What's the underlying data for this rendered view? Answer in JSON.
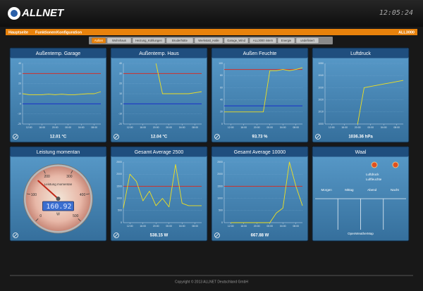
{
  "header": {
    "logo": "ALLNET",
    "clock": "12:05:24"
  },
  "menu": {
    "items": [
      "Hauptseite",
      "Funktionen",
      "Konfiguration"
    ],
    "right": "ALL3000"
  },
  "tabs": {
    "items": [
      "Außen",
      "Wohnhaus",
      "Heizung_Kühlungen",
      "Bruderhütte",
      "Werkstatt_Halle",
      "Garage_Wind",
      "ALL3000 intern",
      "Energie",
      "undefiniert"
    ],
    "active": 0
  },
  "panels": [
    {
      "type": "line",
      "title": "Außentemp. Garage",
      "value": "12.01 °C",
      "chart": {
        "x": [
          0,
          2,
          4,
          6,
          8,
          10,
          12,
          14,
          16,
          18,
          20,
          22,
          24
        ],
        "xlim": [
          0,
          24
        ],
        "xticks": [
          {
            "value": 2,
            "label": "12:00"
          },
          {
            "value": 6,
            "label": "16:00"
          },
          {
            "value": 10,
            "label": "20:00"
          },
          {
            "value": 14,
            "label": "00:00"
          },
          {
            "value": 18,
            "label": "04:00"
          },
          {
            "value": 22,
            "label": "08:00"
          }
        ],
        "ylim": [
          -20,
          40
        ],
        "yticks": [
          -20,
          -10,
          0,
          10,
          20,
          30,
          40
        ],
        "limits": [
          {
            "value": 30,
            "color": "#d0302a"
          },
          {
            "value": 0,
            "color": "#1830c8"
          }
        ],
        "series": [
          {
            "color": "#f0e020",
            "values": [
              10,
              9,
              9,
              9,
              9.5,
              9,
              9.5,
              9,
              9,
              9.5,
              10,
              10,
              12
            ]
          }
        ]
      }
    },
    {
      "type": "line",
      "title": "Außentemp. Haus",
      "value": "12.04 °C",
      "chart": {
        "x": [
          0,
          2,
          4,
          6,
          8,
          10,
          12,
          14,
          16,
          18,
          20,
          22,
          24
        ],
        "xlim": [
          0,
          24
        ],
        "xticks": [
          {
            "value": 2,
            "label": "12:00"
          },
          {
            "value": 6,
            "label": "16:00"
          },
          {
            "value": 10,
            "label": "20:00"
          },
          {
            "value": 14,
            "label": "00:00"
          },
          {
            "value": 18,
            "label": "04:00"
          },
          {
            "value": 22,
            "label": "08:00"
          }
        ],
        "ylim": [
          -20,
          40
        ],
        "yticks": [
          -20,
          -10,
          0,
          10,
          20,
          30,
          40
        ],
        "limits": [
          {
            "value": 30,
            "color": "#d0302a"
          },
          {
            "value": 0,
            "color": "#1830c8"
          }
        ],
        "series": [
          {
            "color": "#f0e020",
            "values": [
              null,
              null,
              null,
              null,
              null,
              40,
              10,
              10,
              10,
              10,
              10,
              11,
              12
            ]
          }
        ]
      }
    },
    {
      "type": "line",
      "title": "Außen Feuchte",
      "value": "93.73 %",
      "chart": {
        "x": [
          0,
          2,
          4,
          6,
          8,
          10,
          12,
          14,
          16,
          18,
          20,
          22,
          24
        ],
        "xlim": [
          0,
          24
        ],
        "xticks": [
          {
            "value": 2,
            "label": "12:00"
          },
          {
            "value": 6,
            "label": "16:00"
          },
          {
            "value": 10,
            "label": "20:00"
          },
          {
            "value": 14,
            "label": "00:00"
          },
          {
            "value": 18,
            "label": "04:00"
          },
          {
            "value": 22,
            "label": "08:00"
          }
        ],
        "ylim": [
          0,
          100
        ],
        "yticks": [
          0,
          20,
          40,
          60,
          80,
          100
        ],
        "limits": [
          {
            "value": 90,
            "color": "#d0302a"
          },
          {
            "value": 30,
            "color": "#1830c8"
          }
        ],
        "series": [
          {
            "color": "#f0e020",
            "values": [
              20,
              20,
              20,
              20,
              20,
              20,
              20,
              88,
              88,
              90,
              88,
              90,
              93
            ]
          }
        ]
      }
    },
    {
      "type": "line",
      "title": "Luftdruck",
      "value": "1036.36 hPa",
      "chart": {
        "x": [
          0,
          2,
          4,
          6,
          8,
          10,
          12,
          14,
          16,
          18,
          20,
          22,
          24
        ],
        "xlim": [
          0,
          24
        ],
        "xticks": [
          {
            "value": 2,
            "label": "12:00"
          },
          {
            "value": 6,
            "label": "16:00"
          },
          {
            "value": 10,
            "label": "20:00"
          },
          {
            "value": 14,
            "label": "00:00"
          },
          {
            "value": 18,
            "label": "04:00"
          },
          {
            "value": 22,
            "label": "08:00"
          }
        ],
        "ylim": [
          1000,
          1050
        ],
        "yticks": [
          1000,
          1010,
          1020,
          1030,
          1040,
          1050
        ],
        "limits": [],
        "series": [
          {
            "color": "#f0e020",
            "values": [
              null,
              null,
              null,
              null,
              null,
              1000,
              1030,
              1031,
              1032,
              1033,
              1034,
              1035,
              1036
            ]
          }
        ]
      }
    },
    {
      "type": "gauge",
      "title": "Leistung momentan",
      "display": 160.92,
      "unit": "W",
      "dial_ticks": [
        0,
        100,
        200,
        300,
        400,
        500
      ],
      "dial_label": "Leistung momentan"
    },
    {
      "type": "line",
      "title": "Gesamt Average 2500",
      "value": "538.15 W",
      "chart": {
        "x": [
          0,
          2,
          4,
          6,
          8,
          10,
          12,
          14,
          16,
          18,
          20,
          22,
          24
        ],
        "xlim": [
          0,
          24
        ],
        "xticks": [
          {
            "value": 2,
            "label": "12:00"
          },
          {
            "value": 6,
            "label": "16:00"
          },
          {
            "value": 10,
            "label": "20:00"
          },
          {
            "value": 14,
            "label": "00:00"
          },
          {
            "value": 18,
            "label": "04:00"
          },
          {
            "value": 22,
            "label": "08:00"
          }
        ],
        "ylim": [
          0,
          2500
        ],
        "yticks": [
          0,
          500,
          1000,
          1500,
          2000,
          2500
        ],
        "limits": [
          {
            "value": 1500,
            "color": "#d0302a"
          }
        ],
        "series": [
          {
            "color": "#f0e020",
            "values": [
              600,
              2000,
              1700,
              900,
              1300,
              700,
              1000,
              650,
              2400,
              800,
              700,
              700,
              700
            ]
          }
        ]
      }
    },
    {
      "type": "line",
      "title": "Gesamt Average 10000",
      "value": "667.88 W",
      "chart": {
        "x": [
          0,
          2,
          4,
          6,
          8,
          10,
          12,
          14,
          16,
          18,
          20,
          22,
          24
        ],
        "xlim": [
          0,
          24
        ],
        "xticks": [
          {
            "value": 2,
            "label": "12:00"
          },
          {
            "value": 6,
            "label": "16:00"
          },
          {
            "value": 10,
            "label": "20:00"
          },
          {
            "value": 14,
            "label": "00:00"
          },
          {
            "value": 18,
            "label": "04:00"
          },
          {
            "value": 22,
            "label": "08:00"
          }
        ],
        "ylim": [
          0,
          2500
        ],
        "yticks": [
          0,
          500,
          1000,
          1500,
          2000,
          2500
        ],
        "limits": [
          {
            "value": 1500,
            "color": "#d0302a"
          }
        ],
        "series": [
          {
            "color": "#f0e020",
            "values": [
              null,
              0,
              0,
              0,
              0,
              0,
              0,
              0,
              400,
              600,
              2500,
              1500,
              700
            ]
          }
        ]
      }
    },
    {
      "type": "weather",
      "title": "Waal",
      "lines": [
        "Luftdruck",
        "Luftfeuchte"
      ],
      "times": [
        "Morgen",
        "Mittag",
        "Abend",
        "Nacht"
      ],
      "source": "OpenWeatherMap"
    }
  ],
  "footer": "Copyright © 2013 ALLNET Deutschland GmbH"
}
